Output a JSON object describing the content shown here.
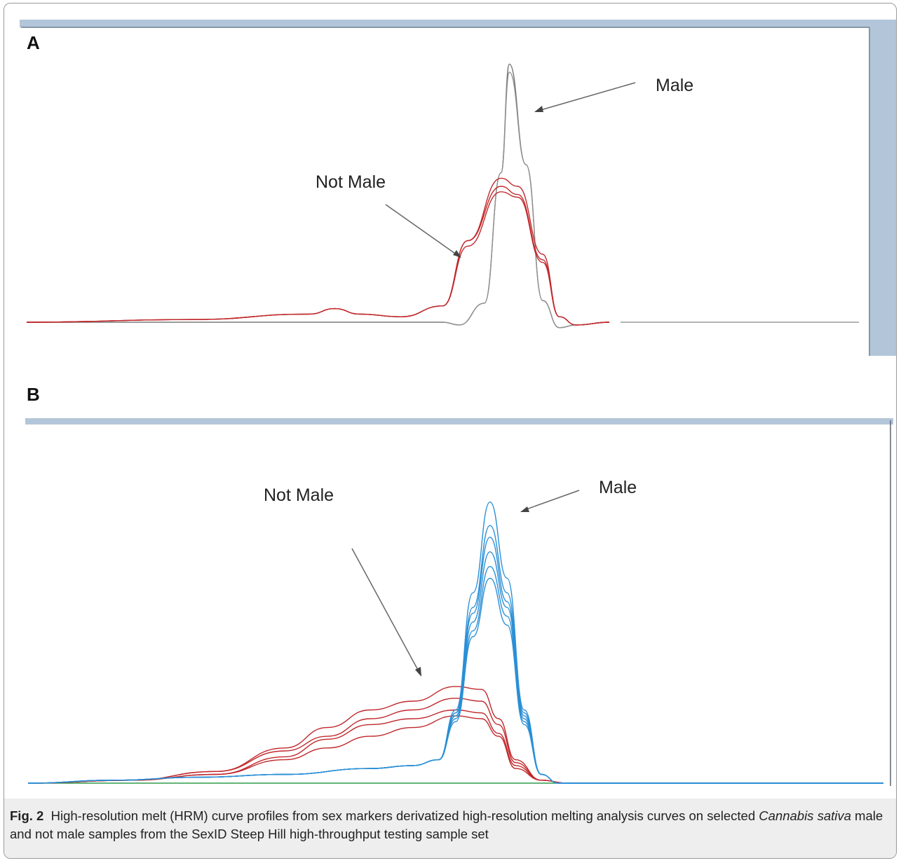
{
  "chart_data": [
    {
      "type": "line",
      "panel": "A",
      "annotations": [
        "Male",
        "Not Male"
      ],
      "grid": false,
      "series": [
        {
          "group": "Male",
          "color": "#707070",
          "x": [
            0,
            35,
            45,
            50,
            52,
            55,
            57,
            58,
            60,
            62,
            64,
            66,
            70,
            100
          ],
          "values": [
            0.0,
            0.0,
            0.0,
            0.0,
            -0.01,
            0.07,
            0.55,
            0.95,
            0.58,
            0.08,
            -0.02,
            -0.01,
            0.0,
            0.0
          ]
        },
        {
          "group": "Male",
          "color": "#909090",
          "x": [
            0,
            35,
            45,
            50,
            52,
            55,
            57,
            58,
            60,
            62,
            64,
            66,
            70,
            100
          ],
          "values": [
            0.0,
            0.0,
            0.0,
            0.0,
            -0.01,
            0.07,
            0.55,
            0.92,
            0.58,
            0.08,
            -0.02,
            -0.01,
            0.0,
            0.0
          ]
        },
        {
          "group": "Not Male",
          "color": "#c0282c",
          "x": [
            0,
            20,
            34,
            37,
            40,
            45,
            50,
            53,
            57,
            59,
            62,
            64,
            66,
            70,
            100
          ],
          "values": [
            0.0,
            0.01,
            0.03,
            0.05,
            0.03,
            0.02,
            0.06,
            0.3,
            0.53,
            0.5,
            0.25,
            0.02,
            -0.01,
            0.0,
            0.0
          ]
        },
        {
          "group": "Not Male",
          "color": "#c0282c",
          "x": [
            0,
            20,
            34,
            37,
            40,
            45,
            50,
            53,
            57,
            59,
            62,
            64,
            66,
            70,
            100
          ],
          "values": [
            0.0,
            0.01,
            0.03,
            0.05,
            0.03,
            0.02,
            0.06,
            0.3,
            0.5,
            0.47,
            0.23,
            0.02,
            -0.01,
            0.0,
            0.0
          ]
        },
        {
          "group": "Not Male",
          "color": "#c0282c",
          "x": [
            0,
            20,
            34,
            37,
            40,
            45,
            50,
            53,
            57,
            59,
            62,
            64,
            66,
            70,
            100
          ],
          "values": [
            0.0,
            0.01,
            0.03,
            0.05,
            0.03,
            0.02,
            0.06,
            0.28,
            0.48,
            0.46,
            0.22,
            0.02,
            -0.01,
            0.0,
            0.0
          ]
        }
      ]
    },
    {
      "type": "line",
      "panel": "B",
      "annotations": [
        "Not Male",
        "Male"
      ],
      "grid": false,
      "series": [
        {
          "group": "baseline",
          "color": "#2e9b48",
          "x": [
            0,
            100
          ],
          "values": [
            0.0,
            0.0
          ]
        },
        {
          "group": "Not Male",
          "color": "#c0282c",
          "x": [
            0,
            12,
            22,
            30,
            35,
            40,
            45,
            50,
            53,
            55,
            57,
            60,
            63,
            64,
            66,
            100
          ],
          "values": [
            0.0,
            0.01,
            0.04,
            0.12,
            0.19,
            0.25,
            0.28,
            0.33,
            0.32,
            0.22,
            0.08,
            0.01,
            0.0,
            0.0,
            0.0,
            0.0
          ]
        },
        {
          "group": "Not Male",
          "color": "#c0282c",
          "x": [
            0,
            12,
            22,
            30,
            35,
            40,
            45,
            50,
            53,
            55,
            57,
            60,
            63,
            64,
            66,
            100
          ],
          "values": [
            0.0,
            0.01,
            0.04,
            0.11,
            0.16,
            0.22,
            0.25,
            0.29,
            0.28,
            0.2,
            0.07,
            0.01,
            0.0,
            0.0,
            0.0,
            0.0
          ]
        },
        {
          "group": "Not Male",
          "color": "#c0282c",
          "x": [
            0,
            12,
            22,
            30,
            35,
            40,
            45,
            50,
            53,
            55,
            57,
            60,
            63,
            64,
            66,
            100
          ],
          "values": [
            0.0,
            0.01,
            0.03,
            0.09,
            0.15,
            0.2,
            0.22,
            0.25,
            0.24,
            0.17,
            0.06,
            0.01,
            0.0,
            0.0,
            0.0,
            0.0
          ]
        },
        {
          "group": "Not Male",
          "color": "#c0282c",
          "x": [
            0,
            12,
            22,
            30,
            35,
            40,
            45,
            50,
            53,
            55,
            57,
            60,
            63,
            64,
            66,
            100
          ],
          "values": [
            0.0,
            0.01,
            0.03,
            0.08,
            0.12,
            0.16,
            0.19,
            0.23,
            0.22,
            0.16,
            0.05,
            0.01,
            0.0,
            0.0,
            0.0,
            0.0
          ]
        },
        {
          "group": "Male",
          "color": "#2a8fd6",
          "x": [
            0,
            10,
            20,
            30,
            40,
            45,
            48,
            50,
            52,
            54,
            56,
            58,
            60,
            62,
            64,
            66,
            100
          ],
          "values": [
            0.0,
            0.01,
            0.02,
            0.03,
            0.05,
            0.06,
            0.08,
            0.25,
            0.65,
            0.96,
            0.7,
            0.25,
            0.03,
            0.0,
            0.0,
            0.0,
            0.0
          ]
        },
        {
          "group": "Male",
          "color": "#2a8fd6",
          "x": [
            0,
            10,
            20,
            30,
            40,
            45,
            48,
            50,
            52,
            54,
            56,
            58,
            60,
            62,
            64,
            66,
            100
          ],
          "values": [
            0.0,
            0.01,
            0.02,
            0.03,
            0.05,
            0.06,
            0.08,
            0.24,
            0.6,
            0.88,
            0.65,
            0.24,
            0.03,
            0.0,
            0.0,
            0.0,
            0.0
          ]
        },
        {
          "group": "Male",
          "color": "#2a8fd6",
          "x": [
            0,
            10,
            20,
            30,
            40,
            45,
            48,
            50,
            52,
            54,
            56,
            58,
            60,
            62,
            64,
            66,
            100
          ],
          "values": [
            0.0,
            0.01,
            0.02,
            0.03,
            0.05,
            0.06,
            0.08,
            0.24,
            0.58,
            0.84,
            0.62,
            0.23,
            0.03,
            0.0,
            0.0,
            0.0,
            0.0
          ]
        },
        {
          "group": "Male",
          "color": "#2a8fd6",
          "x": [
            0,
            10,
            20,
            30,
            40,
            45,
            48,
            50,
            52,
            54,
            56,
            58,
            60,
            62,
            64,
            66,
            100
          ],
          "values": [
            0.0,
            0.01,
            0.02,
            0.03,
            0.05,
            0.06,
            0.08,
            0.23,
            0.55,
            0.79,
            0.6,
            0.22,
            0.03,
            0.0,
            0.0,
            0.0,
            0.0
          ]
        },
        {
          "group": "Male",
          "color": "#2a8fd6",
          "x": [
            0,
            10,
            20,
            30,
            40,
            45,
            48,
            50,
            52,
            54,
            56,
            58,
            60,
            62,
            64,
            66,
            100
          ],
          "values": [
            0.0,
            0.01,
            0.02,
            0.03,
            0.05,
            0.06,
            0.08,
            0.22,
            0.52,
            0.74,
            0.57,
            0.21,
            0.03,
            0.0,
            0.0,
            0.0,
            0.0
          ]
        },
        {
          "group": "Male",
          "color": "#2a8fd6",
          "x": [
            0,
            10,
            20,
            30,
            40,
            45,
            48,
            50,
            52,
            54,
            56,
            58,
            60,
            62,
            64,
            66,
            100
          ],
          "values": [
            0.0,
            0.01,
            0.02,
            0.03,
            0.05,
            0.06,
            0.08,
            0.21,
            0.5,
            0.7,
            0.54,
            0.2,
            0.03,
            0.0,
            0.0,
            0.0,
            0.0
          ]
        }
      ]
    }
  ],
  "panels": {
    "a_label": "A",
    "b_label": "B",
    "a_male": "Male",
    "a_not_male": "Not Male",
    "b_male": "Male",
    "b_not_male": "Not Male"
  },
  "caption": {
    "label": "Fig. 2",
    "text_before": "High-resolution melt (HRM) curve profiles from sex markers derivatized high-resolution melting analysis curves on selected ",
    "species": "Cannabis sativa",
    "text_after": " male and not male samples from the SexID Steep Hill high-throughput testing sample set"
  },
  "colors": {
    "frame_blue": "#b3c6d9",
    "male_a": "#808080",
    "not_male": "#c0282c",
    "male_b": "#2a8fd6",
    "baseline_b": "#2e9b48"
  }
}
